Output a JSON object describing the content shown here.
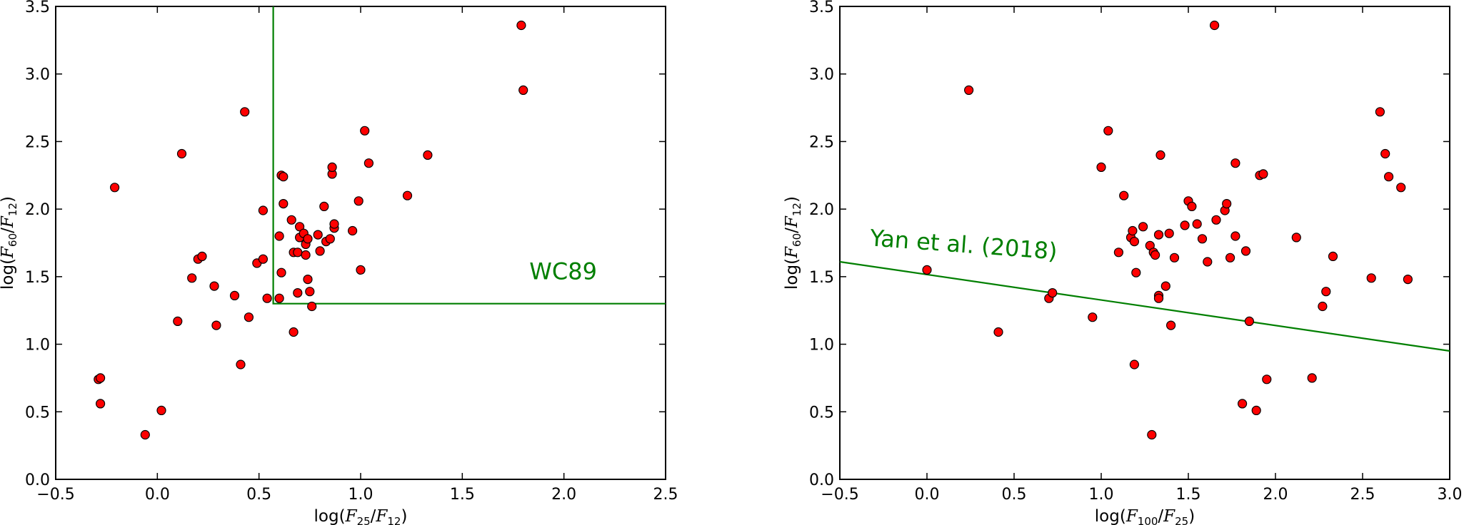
{
  "chart_data": [
    {
      "type": "scatter",
      "title": "",
      "xlabel": {
        "pre": "log(",
        "var1": "F",
        "sub1": "25",
        "mid": "/",
        "var2": "F",
        "sub2": "12",
        "post": ")"
      },
      "ylabel": {
        "pre": "log(",
        "var1": "F",
        "sub1": "60",
        "mid": "/",
        "var2": "F",
        "sub2": "12",
        "post": ")"
      },
      "xlim": [
        -0.5,
        2.5
      ],
      "ylim": [
        0.0,
        3.5
      ],
      "xticks": [
        -0.5,
        0.0,
        0.5,
        1.0,
        1.5,
        2.0,
        2.5
      ],
      "yticks": [
        0.0,
        0.5,
        1.0,
        1.5,
        2.0,
        2.5,
        3.0,
        3.5
      ],
      "xtick_labels": [
        "−0.5",
        "0.0",
        "0.5",
        "1.0",
        "1.5",
        "2.0",
        "2.5"
      ],
      "ytick_labels": [
        "0.0",
        "0.5",
        "1.0",
        "1.5",
        "2.0",
        "2.5",
        "3.0",
        "3.5"
      ],
      "grid": false,
      "marker_color": "#ff0000",
      "line_color": "#007f00",
      "annotation": {
        "text": "WC89",
        "x": 1.83,
        "y": 1.48
      },
      "boundary": [
        [
          0.57,
          3.5
        ],
        [
          0.57,
          1.3
        ],
        [
          2.5,
          1.3
        ]
      ],
      "points": [
        [
          -0.29,
          0.74
        ],
        [
          -0.28,
          0.75
        ],
        [
          -0.28,
          0.56
        ],
        [
          -0.21,
          2.16
        ],
        [
          -0.06,
          0.33
        ],
        [
          0.02,
          0.51
        ],
        [
          0.1,
          1.17
        ],
        [
          0.12,
          2.41
        ],
        [
          0.17,
          1.49
        ],
        [
          0.2,
          1.63
        ],
        [
          0.22,
          1.65
        ],
        [
          0.28,
          1.43
        ],
        [
          0.29,
          1.14
        ],
        [
          0.38,
          1.36
        ],
        [
          0.41,
          0.85
        ],
        [
          0.43,
          2.72
        ],
        [
          0.45,
          1.2
        ],
        [
          0.49,
          1.6
        ],
        [
          0.52,
          1.63
        ],
        [
          0.52,
          1.99
        ],
        [
          0.54,
          1.34
        ],
        [
          0.6,
          1.8
        ],
        [
          0.6,
          1.34
        ],
        [
          0.61,
          1.53
        ],
        [
          0.61,
          2.25
        ],
        [
          0.62,
          2.24
        ],
        [
          0.62,
          2.04
        ],
        [
          0.66,
          1.92
        ],
        [
          0.67,
          1.68
        ],
        [
          0.67,
          1.09
        ],
        [
          0.69,
          1.68
        ],
        [
          0.69,
          1.38
        ],
        [
          0.7,
          1.79
        ],
        [
          0.7,
          1.87
        ],
        [
          0.72,
          1.82
        ],
        [
          0.73,
          1.74
        ],
        [
          0.73,
          1.66
        ],
        [
          0.74,
          1.48
        ],
        [
          0.74,
          1.78
        ],
        [
          0.75,
          1.39
        ],
        [
          0.76,
          1.28
        ],
        [
          0.79,
          1.81
        ],
        [
          0.8,
          1.69
        ],
        [
          0.82,
          2.02
        ],
        [
          0.83,
          1.76
        ],
        [
          0.85,
          1.78
        ],
        [
          0.86,
          2.26
        ],
        [
          0.86,
          2.31
        ],
        [
          0.87,
          1.86
        ],
        [
          0.87,
          1.89
        ],
        [
          0.96,
          1.84
        ],
        [
          0.99,
          2.06
        ],
        [
          1.0,
          1.55
        ],
        [
          1.02,
          2.58
        ],
        [
          1.04,
          2.34
        ],
        [
          1.23,
          2.1
        ],
        [
          1.33,
          2.4
        ],
        [
          1.79,
          3.36
        ],
        [
          1.8,
          2.88
        ]
      ]
    },
    {
      "type": "scatter",
      "title": "",
      "xlabel": {
        "pre": "log(",
        "var1": "F",
        "sub1": "100",
        "mid": "/",
        "var2": "F",
        "sub2": "25",
        "post": ")"
      },
      "ylabel": {
        "pre": "log(",
        "var1": "F",
        "sub1": "60",
        "mid": "/",
        "var2": "F",
        "sub2": "12",
        "post": ")"
      },
      "xlim": [
        -0.5,
        3.0
      ],
      "ylim": [
        0.0,
        3.5
      ],
      "xticks": [
        -0.5,
        0.0,
        0.5,
        1.0,
        1.5,
        2.0,
        2.5,
        3.0
      ],
      "yticks": [
        0.0,
        0.5,
        1.0,
        1.5,
        2.0,
        2.5,
        3.0,
        3.5
      ],
      "xtick_labels": [
        "−0.5",
        "0.0",
        "0.5",
        "1.0",
        "1.5",
        "2.0",
        "2.5",
        "3.0"
      ],
      "ytick_labels": [
        "0.0",
        "0.5",
        "1.0",
        "1.5",
        "2.0",
        "2.5",
        "3.0",
        "3.5"
      ],
      "grid": false,
      "marker_color": "#ff0000",
      "line_color": "#007f00",
      "annotation": {
        "text": "Yan et al. (2018)",
        "x": -0.33,
        "y": 1.73,
        "angle": 4.2
      },
      "boundary": [
        [
          -0.5,
          1.61
        ],
        [
          3.0,
          0.95
        ]
      ],
      "points": [
        [
          0.0,
          1.55
        ],
        [
          0.24,
          2.88
        ],
        [
          0.41,
          1.09
        ],
        [
          0.7,
          1.34
        ],
        [
          0.72,
          1.38
        ],
        [
          0.95,
          1.2
        ],
        [
          1.0,
          2.31
        ],
        [
          1.04,
          2.58
        ],
        [
          1.1,
          1.68
        ],
        [
          1.13,
          2.1
        ],
        [
          1.17,
          1.79
        ],
        [
          1.18,
          1.84
        ],
        [
          1.19,
          1.76
        ],
        [
          1.19,
          0.85
        ],
        [
          1.2,
          1.53
        ],
        [
          1.24,
          1.87
        ],
        [
          1.28,
          1.73
        ],
        [
          1.29,
          0.33
        ],
        [
          1.3,
          1.68
        ],
        [
          1.31,
          1.66
        ],
        [
          1.33,
          1.81
        ],
        [
          1.33,
          1.36
        ],
        [
          1.33,
          1.34
        ],
        [
          1.34,
          2.4
        ],
        [
          1.37,
          1.43
        ],
        [
          1.39,
          1.82
        ],
        [
          1.4,
          1.14
        ],
        [
          1.42,
          1.64
        ],
        [
          1.48,
          1.88
        ],
        [
          1.5,
          2.06
        ],
        [
          1.52,
          2.02
        ],
        [
          1.55,
          1.89
        ],
        [
          1.58,
          1.78
        ],
        [
          1.61,
          1.61
        ],
        [
          1.65,
          3.36
        ],
        [
          1.66,
          1.92
        ],
        [
          1.71,
          1.99
        ],
        [
          1.72,
          2.04
        ],
        [
          1.74,
          1.64
        ],
        [
          1.77,
          2.34
        ],
        [
          1.77,
          1.8
        ],
        [
          1.81,
          0.56
        ],
        [
          1.83,
          1.69
        ],
        [
          1.85,
          1.17
        ],
        [
          1.89,
          0.51
        ],
        [
          1.91,
          2.25
        ],
        [
          1.93,
          2.26
        ],
        [
          1.95,
          0.74
        ],
        [
          2.12,
          1.79
        ],
        [
          2.21,
          0.75
        ],
        [
          2.27,
          1.28
        ],
        [
          2.29,
          1.39
        ],
        [
          2.33,
          1.65
        ],
        [
          2.55,
          1.49
        ],
        [
          2.6,
          2.72
        ],
        [
          2.63,
          2.41
        ],
        [
          2.65,
          2.24
        ],
        [
          2.72,
          2.16
        ],
        [
          2.76,
          1.48
        ]
      ]
    }
  ]
}
